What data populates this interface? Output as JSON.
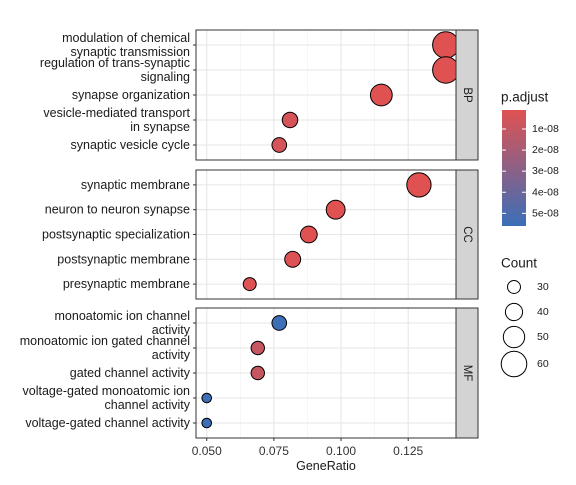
{
  "chart_data": {
    "type": "scatter",
    "xlabel": "GeneRatio",
    "x_ticks": [
      0.05,
      0.075,
      0.1,
      0.125
    ],
    "x_tick_labels": [
      "0.050",
      "0.075",
      "0.100",
      "0.125"
    ],
    "xlim": [
      0.046,
      0.1428
    ],
    "grid": true,
    "legend_position": "right",
    "panels": [
      {
        "facet": "BP",
        "terms": [
          {
            "label": [
              "modulation of chemical",
              "synaptic transmission"
            ],
            "x": 0.139,
            "count": 62,
            "p_adjust": 1e-09
          },
          {
            "label": [
              "regulation of trans-synaptic",
              "signaling"
            ],
            "x": 0.139,
            "count": 62,
            "p_adjust": 1e-09
          },
          {
            "label": [
              "synapse organization"
            ],
            "x": 0.115,
            "count": 51,
            "p_adjust": 1e-09
          },
          {
            "label": [
              "vesicle-mediated transport",
              "in synapse"
            ],
            "x": 0.081,
            "count": 36,
            "p_adjust": 5e-09
          },
          {
            "label": [
              "synaptic vesicle cycle"
            ],
            "x": 0.077,
            "count": 34,
            "p_adjust": 5e-09
          }
        ]
      },
      {
        "facet": "CC",
        "terms": [
          {
            "label": [
              "synaptic membrane"
            ],
            "x": 0.129,
            "count": 57,
            "p_adjust": 1e-09
          },
          {
            "label": [
              "neuron to neuron synapse"
            ],
            "x": 0.098,
            "count": 44,
            "p_adjust": 1e-09
          },
          {
            "label": [
              "postsynaptic specialization"
            ],
            "x": 0.088,
            "count": 39,
            "p_adjust": 1e-09
          },
          {
            "label": [
              "postsynaptic membrane"
            ],
            "x": 0.082,
            "count": 37,
            "p_adjust": 2e-09
          },
          {
            "label": [
              "presynaptic membrane"
            ],
            "x": 0.066,
            "count": 30,
            "p_adjust": 2e-09
          }
        ]
      },
      {
        "facet": "MF",
        "terms": [
          {
            "label": [
              "monoatomic ion channel",
              "activity"
            ],
            "x": 0.077,
            "count": 34,
            "p_adjust": 5.5e-08
          },
          {
            "label": [
              "monoatomic ion gated channel",
              "activity"
            ],
            "x": 0.069,
            "count": 31,
            "p_adjust": 1e-08
          },
          {
            "label": [
              "gated channel activity"
            ],
            "x": 0.069,
            "count": 31,
            "p_adjust": 1e-08
          },
          {
            "label": [
              "voltage-gated monoatomic ion",
              "channel activity"
            ],
            "x": 0.05,
            "count": 22,
            "p_adjust": 5.5e-08
          },
          {
            "label": [
              "voltage-gated channel activity"
            ],
            "x": 0.05,
            "count": 22,
            "p_adjust": 5.5e-08
          }
        ]
      }
    ],
    "color_legend": {
      "title": "p.adjust",
      "ticks": [
        1e-08,
        2e-08,
        3e-08,
        4e-08,
        5e-08
      ],
      "tick_labels": [
        "1e-08",
        "2e-08",
        "3e-08",
        "4e-08",
        "5e-08"
      ],
      "range": [
        1e-09,
        5.6e-08
      ],
      "low_color": "#E05252",
      "high_color": "#3A6FB8"
    },
    "size_legend": {
      "title": "Count",
      "values": [
        30,
        40,
        50,
        60
      ],
      "labels": [
        "30",
        "40",
        "50",
        "60"
      ]
    }
  }
}
